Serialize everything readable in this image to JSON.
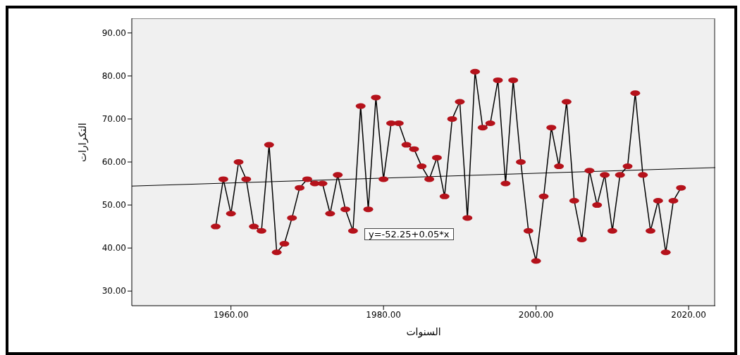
{
  "chart_data": {
    "type": "line",
    "xlabel": "السنوات",
    "ylabel": "التكرارات",
    "x": [
      1958,
      1959,
      1960,
      1961,
      1962,
      1963,
      1964,
      1965,
      1966,
      1967,
      1968,
      1969,
      1970,
      1971,
      1972,
      1973,
      1974,
      1975,
      1976,
      1977,
      1978,
      1979,
      1980,
      1981,
      1982,
      1983,
      1984,
      1985,
      1986,
      1987,
      1988,
      1989,
      1990,
      1991,
      1992,
      1993,
      1994,
      1995,
      1996,
      1997,
      1998,
      1999,
      2000,
      2001,
      2002,
      2003,
      2004,
      2005,
      2006,
      2007,
      2008,
      2009,
      2010,
      2011,
      2012,
      2013,
      2014,
      2015,
      2016,
      2017,
      2018,
      2019
    ],
    "series": [
      {
        "color": "#b5121b",
        "marker": "circle",
        "values": [
          45,
          56,
          48,
          60,
          56,
          45,
          44,
          64,
          39,
          41,
          47,
          54,
          56,
          55,
          55,
          48,
          57,
          49,
          44,
          73,
          49,
          75,
          56,
          69,
          69,
          64,
          63,
          59,
          56,
          61,
          52,
          70,
          74,
          47,
          81,
          68,
          69,
          79,
          55,
          79,
          60,
          44,
          37,
          52,
          68,
          59,
          74,
          51,
          42,
          58,
          50,
          57,
          44,
          57,
          59,
          76,
          57,
          44,
          51,
          39,
          51,
          54
        ]
      },
      {
        "color": "#000000",
        "marker": "none",
        "x": [
          1947,
          2023.5
        ],
        "values": [
          54.4,
          58.7
        ]
      }
    ],
    "xlim": [
      1947,
      2023.5
    ],
    "xticks": [
      {
        "value": 1960,
        "label": "1960.00"
      },
      {
        "value": 1980,
        "label": "1980.00"
      },
      {
        "value": 2000,
        "label": "2000.00"
      },
      {
        "value": 2020,
        "label": "2020.00"
      }
    ],
    "ylim": [
      26.6,
      93.4
    ],
    "yticks": [
      {
        "value": 30,
        "label": "30.00"
      },
      {
        "value": 40,
        "label": "40.00"
      },
      {
        "value": 50,
        "label": "50.00"
      },
      {
        "value": 60,
        "label": "60.00"
      },
      {
        "value": 70,
        "label": "70.00"
      },
      {
        "value": 80,
        "label": "80.00"
      },
      {
        "value": 90,
        "label": "90.00"
      }
    ],
    "annotations": [
      "y=-52.25+0.05*x"
    ],
    "grid": false
  }
}
